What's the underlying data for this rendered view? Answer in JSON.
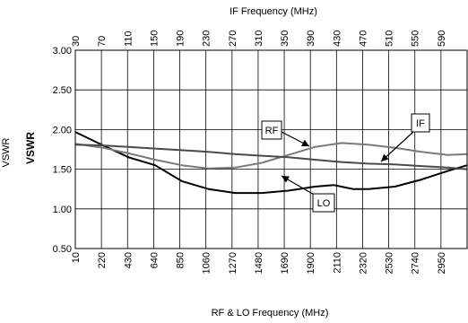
{
  "chart_data": {
    "type": "line",
    "xlabel": "RF & LO Frequency (MHz)",
    "x2label": "IF Frequency (MHz)",
    "ylabel": "VSWR",
    "ylabel_outer": "VSWR",
    "x_range": [
      10,
      3100
    ],
    "x2_range": [
      30,
      620
    ],
    "ylim": [
      0.5,
      3.0
    ],
    "y_ticks": [
      "0.50",
      "1.00",
      "1.50",
      "2.00",
      "2.50",
      "3.00"
    ],
    "x_ticks": [
      "10",
      "220",
      "430",
      "640",
      "850",
      "1060",
      "1270",
      "1480",
      "1690",
      "1900",
      "2110",
      "2320",
      "2530",
      "2740",
      "2950"
    ],
    "x2_ticks": [
      "30",
      "70",
      "110",
      "150",
      "190",
      "230",
      "270",
      "310",
      "350",
      "390",
      "430",
      "470",
      "510",
      "550",
      "590"
    ],
    "grid": true,
    "series": [
      {
        "name": "LO",
        "color": "#000000",
        "points": [
          [
            10,
            1.97
          ],
          [
            230,
            1.8
          ],
          [
            430,
            1.65
          ],
          [
            640,
            1.55
          ],
          [
            850,
            1.35
          ],
          [
            1060,
            1.25
          ],
          [
            1270,
            1.2
          ],
          [
            1480,
            1.2
          ],
          [
            1690,
            1.23
          ],
          [
            1900,
            1.28
          ],
          [
            2050,
            1.3
          ],
          [
            2200,
            1.25
          ],
          [
            2320,
            1.25
          ],
          [
            2530,
            1.28
          ],
          [
            2740,
            1.37
          ],
          [
            2950,
            1.48
          ],
          [
            3100,
            1.55
          ]
        ]
      },
      {
        "name": "RF",
        "color": "#7a7a7a",
        "points": [
          [
            10,
            1.82
          ],
          [
            230,
            1.77
          ],
          [
            430,
            1.7
          ],
          [
            640,
            1.62
          ],
          [
            850,
            1.55
          ],
          [
            1060,
            1.51
          ],
          [
            1270,
            1.52
          ],
          [
            1480,
            1.58
          ],
          [
            1690,
            1.68
          ],
          [
            1900,
            1.78
          ],
          [
            2110,
            1.83
          ],
          [
            2320,
            1.81
          ],
          [
            2530,
            1.77
          ],
          [
            2740,
            1.72
          ],
          [
            2950,
            1.68
          ],
          [
            3100,
            1.69
          ]
        ]
      },
      {
        "name": "IF",
        "color": "#4a4a4a",
        "points": [
          [
            10,
            1.81
          ],
          [
            230,
            1.8
          ],
          [
            430,
            1.78
          ],
          [
            640,
            1.76
          ],
          [
            850,
            1.74
          ],
          [
            1060,
            1.72
          ],
          [
            1270,
            1.69
          ],
          [
            1480,
            1.67
          ],
          [
            1690,
            1.65
          ],
          [
            1900,
            1.62
          ],
          [
            2110,
            1.59
          ],
          [
            2320,
            1.57
          ],
          [
            2530,
            1.56
          ],
          [
            2740,
            1.54
          ],
          [
            2950,
            1.52
          ],
          [
            3100,
            1.5
          ]
        ]
      }
    ],
    "annotations": [
      {
        "label": "RF",
        "series": "RF"
      },
      {
        "label": "IF",
        "series": "IF"
      },
      {
        "label": "LO",
        "series": "LO"
      }
    ]
  }
}
